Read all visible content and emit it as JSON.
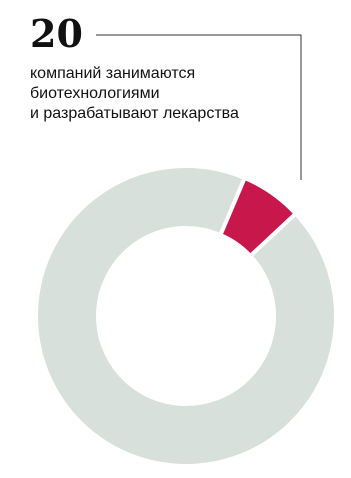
{
  "callout": {
    "number": "20",
    "lines": [
      "компаний занимаются",
      "биотехнологиями",
      "и разрабатывают лекарства"
    ]
  },
  "colors": {
    "highlight": "#c8174a",
    "rest": "#d8e0db",
    "leader_line": "#333333",
    "separator": "#ffffff"
  },
  "chart_data": {
    "type": "pie",
    "donut": true,
    "slices": [
      {
        "value": 20
      },
      {
        "value": 280
      }
    ],
    "highlighted_slice": 0,
    "start_angle_deg": 23
  }
}
